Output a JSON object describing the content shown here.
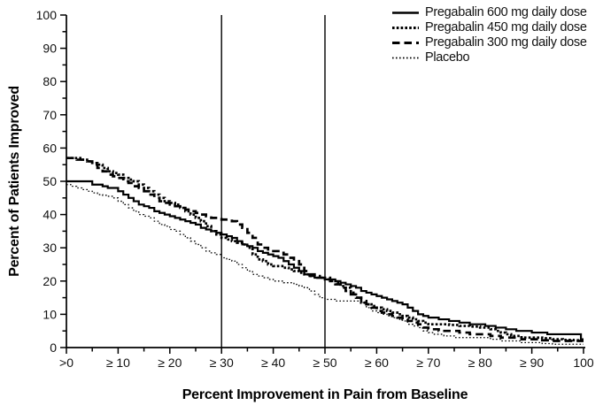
{
  "chart_data": {
    "type": "line",
    "subtype": "step",
    "title": "",
    "xlabel": "Percent Improvement in Pain from Baseline",
    "ylabel": "Percent of Patients Improved",
    "xlim": [
      0,
      100
    ],
    "ylim": [
      0,
      100
    ],
    "x_tick_positions": [
      0,
      10,
      20,
      30,
      40,
      50,
      60,
      70,
      80,
      90,
      100
    ],
    "x_tick_labels": [
      ">0",
      "≥ 10",
      "≥ 20",
      "≥ 30",
      "≥ 40",
      "≥ 50",
      "≥ 60",
      "≥ 70",
      "≥ 80",
      "≥ 90",
      "100"
    ],
    "y_tick_positions": [
      0,
      10,
      20,
      30,
      40,
      50,
      60,
      70,
      80,
      90,
      100
    ],
    "y_tick_labels": [
      "0",
      "10",
      "20",
      "30",
      "40",
      "50",
      "60",
      "70",
      "80",
      "90",
      "100"
    ],
    "minor_tick_step": 5,
    "reference_lines_x": [
      30,
      50
    ],
    "grid": false,
    "legend_position": "top-right",
    "line_color": "#000000",
    "background_color": "#ffffff",
    "series": [
      {
        "name": "Pregabalin 600 mg daily dose",
        "style": "solid",
        "points": [
          [
            0,
            50
          ],
          [
            5,
            49
          ],
          [
            7,
            48.5
          ],
          [
            8,
            48
          ],
          [
            10,
            47
          ],
          [
            11,
            46
          ],
          [
            12,
            45
          ],
          [
            13,
            44
          ],
          [
            14,
            43
          ],
          [
            15,
            42.5
          ],
          [
            16,
            42
          ],
          [
            17,
            41
          ],
          [
            18,
            40.5
          ],
          [
            19,
            40
          ],
          [
            20,
            39.5
          ],
          [
            21,
            39
          ],
          [
            22,
            38.5
          ],
          [
            23,
            38
          ],
          [
            24,
            37.5
          ],
          [
            25,
            37
          ],
          [
            26,
            36
          ],
          [
            27,
            35.5
          ],
          [
            28,
            35
          ],
          [
            29,
            34.5
          ],
          [
            30,
            34
          ],
          [
            31,
            33.5
          ],
          [
            32,
            33
          ],
          [
            33,
            32
          ],
          [
            34,
            31
          ],
          [
            35,
            30.5
          ],
          [
            36,
            30
          ],
          [
            37,
            29
          ],
          [
            38,
            28.5
          ],
          [
            39,
            28
          ],
          [
            40,
            27.5
          ],
          [
            41,
            27
          ],
          [
            42,
            26
          ],
          [
            43,
            25
          ],
          [
            44,
            24
          ],
          [
            45,
            23
          ],
          [
            46,
            22
          ],
          [
            47,
            21.5
          ],
          [
            48,
            21
          ],
          [
            50,
            20.5
          ],
          [
            52,
            20
          ],
          [
            53,
            19.5
          ],
          [
            54,
            19
          ],
          [
            55,
            18.5
          ],
          [
            56,
            18
          ],
          [
            57,
            17
          ],
          [
            58,
            16.5
          ],
          [
            59,
            16
          ],
          [
            60,
            15.5
          ],
          [
            61,
            15
          ],
          [
            62,
            14.5
          ],
          [
            63,
            14
          ],
          [
            64,
            13.5
          ],
          [
            65,
            13
          ],
          [
            66,
            12
          ],
          [
            67,
            11
          ],
          [
            68,
            10
          ],
          [
            69,
            9.5
          ],
          [
            70,
            9
          ],
          [
            72,
            8.5
          ],
          [
            74,
            8
          ],
          [
            76,
            7.5
          ],
          [
            78,
            7
          ],
          [
            81,
            6.5
          ],
          [
            83,
            6
          ],
          [
            85,
            5.5
          ],
          [
            87,
            5
          ],
          [
            90,
            4.5
          ],
          [
            93,
            4
          ],
          [
            99,
            4
          ],
          [
            99.5,
            2.5
          ],
          [
            100,
            2.5
          ]
        ]
      },
      {
        "name": "Pregabalin 450 mg daily dose",
        "style": "dotted-bold",
        "points": [
          [
            0,
            57
          ],
          [
            2,
            57
          ],
          [
            3,
            56.5
          ],
          [
            4,
            56
          ],
          [
            5,
            55.5
          ],
          [
            6,
            55
          ],
          [
            7,
            54
          ],
          [
            8,
            53
          ],
          [
            9,
            52.5
          ],
          [
            10,
            52
          ],
          [
            11,
            51
          ],
          [
            12,
            50.5
          ],
          [
            13,
            50
          ],
          [
            14,
            49
          ],
          [
            15,
            48
          ],
          [
            16,
            47
          ],
          [
            17,
            46
          ],
          [
            18,
            45
          ],
          [
            19,
            44
          ],
          [
            20,
            43.5
          ],
          [
            21,
            43
          ],
          [
            22,
            42
          ],
          [
            23,
            41
          ],
          [
            24,
            40
          ],
          [
            25,
            39
          ],
          [
            26,
            38
          ],
          [
            27,
            36.5
          ],
          [
            28,
            35
          ],
          [
            29,
            34
          ],
          [
            30,
            33
          ],
          [
            31,
            32.5
          ],
          [
            32,
            32
          ],
          [
            33,
            31.5
          ],
          [
            34,
            31
          ],
          [
            35,
            30
          ],
          [
            36,
            28
          ],
          [
            37,
            26.5
          ],
          [
            38,
            26
          ],
          [
            39,
            25
          ],
          [
            40,
            24.5
          ],
          [
            42,
            24
          ],
          [
            43,
            23.5
          ],
          [
            44,
            23
          ],
          [
            45,
            22.5
          ],
          [
            46,
            22
          ],
          [
            47,
            21.5
          ],
          [
            48,
            21
          ],
          [
            50,
            20.5
          ],
          [
            51,
            20
          ],
          [
            52,
            19.5
          ],
          [
            53,
            18.5
          ],
          [
            54,
            18
          ],
          [
            55,
            16.5
          ],
          [
            56,
            15
          ],
          [
            57,
            13.5
          ],
          [
            58,
            13
          ],
          [
            59,
            12.5
          ],
          [
            60,
            12
          ],
          [
            61,
            11.5
          ],
          [
            62,
            11
          ],
          [
            63,
            10.5
          ],
          [
            64,
            10
          ],
          [
            65,
            9.5
          ],
          [
            66,
            9
          ],
          [
            67,
            8.5
          ],
          [
            68,
            8
          ],
          [
            69,
            7.5
          ],
          [
            70,
            7
          ],
          [
            74,
            6.8
          ],
          [
            76,
            6.5
          ],
          [
            78,
            6.3
          ],
          [
            80,
            6
          ],
          [
            82,
            5.5
          ],
          [
            83,
            5
          ],
          [
            84,
            4.5
          ],
          [
            85,
            4
          ],
          [
            86,
            3.5
          ],
          [
            88,
            3
          ],
          [
            90,
            3
          ],
          [
            92,
            2.8
          ],
          [
            94,
            2.5
          ],
          [
            96,
            2.3
          ],
          [
            98,
            2.2
          ],
          [
            100,
            2
          ]
        ]
      },
      {
        "name": "Pregabalin 300 mg daily dose",
        "style": "dashed-bold",
        "points": [
          [
            0,
            57
          ],
          [
            2,
            56.5
          ],
          [
            4,
            56
          ],
          [
            5,
            55
          ],
          [
            6,
            54
          ],
          [
            7,
            53
          ],
          [
            8,
            52
          ],
          [
            9,
            51.5
          ],
          [
            10,
            51
          ],
          [
            11,
            50
          ],
          [
            12,
            49.5
          ],
          [
            13,
            48.5
          ],
          [
            14,
            48
          ],
          [
            15,
            47
          ],
          [
            16,
            46
          ],
          [
            17,
            45
          ],
          [
            18,
            44
          ],
          [
            19,
            43.5
          ],
          [
            20,
            43
          ],
          [
            21,
            42.5
          ],
          [
            22,
            42
          ],
          [
            23,
            41.5
          ],
          [
            24,
            41
          ],
          [
            25,
            40.5
          ],
          [
            26,
            40
          ],
          [
            27,
            39.5
          ],
          [
            28,
            39
          ],
          [
            30,
            38.5
          ],
          [
            32,
            38
          ],
          [
            33,
            37
          ],
          [
            34,
            36
          ],
          [
            35,
            34.5
          ],
          [
            36,
            33
          ],
          [
            37,
            31
          ],
          [
            38,
            30
          ],
          [
            39,
            29.5
          ],
          [
            40,
            29
          ],
          [
            41,
            28.5
          ],
          [
            42,
            28
          ],
          [
            43,
            27
          ],
          [
            44,
            26
          ],
          [
            45,
            25
          ],
          [
            46,
            23
          ],
          [
            47,
            22
          ],
          [
            48,
            21.5
          ],
          [
            49,
            21
          ],
          [
            50,
            21
          ],
          [
            51,
            20
          ],
          [
            52,
            19
          ],
          [
            53,
            18
          ],
          [
            54,
            17
          ],
          [
            55,
            16
          ],
          [
            56,
            15
          ],
          [
            57,
            14
          ],
          [
            58,
            13
          ],
          [
            59,
            12
          ],
          [
            60,
            11
          ],
          [
            61,
            10.5
          ],
          [
            62,
            10
          ],
          [
            63,
            9.5
          ],
          [
            64,
            9
          ],
          [
            65,
            8.5
          ],
          [
            66,
            8
          ],
          [
            67,
            7.5
          ],
          [
            68,
            7
          ],
          [
            69,
            6
          ],
          [
            70,
            5.5
          ],
          [
            72,
            5
          ],
          [
            75,
            5
          ],
          [
            76,
            4.5
          ],
          [
            78,
            4
          ],
          [
            80,
            4
          ],
          [
            82,
            3.5
          ],
          [
            84,
            3
          ],
          [
            86,
            3
          ],
          [
            88,
            2.5
          ],
          [
            90,
            2.5
          ],
          [
            92,
            2.2
          ],
          [
            94,
            2
          ],
          [
            98,
            2
          ],
          [
            100,
            2
          ]
        ]
      },
      {
        "name": "Placebo",
        "style": "dotted-thin",
        "points": [
          [
            0,
            49
          ],
          [
            1,
            48.5
          ],
          [
            2,
            48
          ],
          [
            3,
            47.5
          ],
          [
            4,
            47
          ],
          [
            5,
            46.5
          ],
          [
            6,
            46
          ],
          [
            7,
            45.8
          ],
          [
            8,
            45.5
          ],
          [
            9,
            45
          ],
          [
            10,
            44
          ],
          [
            11,
            43
          ],
          [
            12,
            42
          ],
          [
            13,
            41
          ],
          [
            14,
            40
          ],
          [
            15,
            39.5
          ],
          [
            16,
            39
          ],
          [
            17,
            38
          ],
          [
            18,
            37
          ],
          [
            19,
            36.5
          ],
          [
            20,
            35.5
          ],
          [
            21,
            35
          ],
          [
            22,
            34
          ],
          [
            23,
            33
          ],
          [
            24,
            32
          ],
          [
            25,
            31
          ],
          [
            26,
            30
          ],
          [
            27,
            29
          ],
          [
            28,
            28.5
          ],
          [
            29,
            28
          ],
          [
            30,
            27
          ],
          [
            31,
            26.5
          ],
          [
            32,
            26
          ],
          [
            33,
            25
          ],
          [
            34,
            24
          ],
          [
            35,
            23
          ],
          [
            36,
            22
          ],
          [
            37,
            21.5
          ],
          [
            38,
            21
          ],
          [
            39,
            20.5
          ],
          [
            40,
            20
          ],
          [
            42,
            19.5
          ],
          [
            44,
            19
          ],
          [
            45,
            18.5
          ],
          [
            46,
            18
          ],
          [
            47,
            17
          ],
          [
            48,
            16
          ],
          [
            49,
            15
          ],
          [
            50,
            14.5
          ],
          [
            52,
            14
          ],
          [
            55,
            14
          ],
          [
            57,
            13.5
          ],
          [
            58,
            12
          ],
          [
            59,
            11
          ],
          [
            60,
            10.5
          ],
          [
            61,
            10
          ],
          [
            62,
            9.5
          ],
          [
            63,
            9
          ],
          [
            64,
            8.5
          ],
          [
            65,
            8
          ],
          [
            66,
            7
          ],
          [
            67,
            6.5
          ],
          [
            68,
            6
          ],
          [
            69,
            5
          ],
          [
            70,
            4.5
          ],
          [
            71,
            4
          ],
          [
            73,
            3.5
          ],
          [
            75,
            3
          ],
          [
            80,
            3
          ],
          [
            82,
            2.5
          ],
          [
            84,
            2
          ],
          [
            86,
            2
          ],
          [
            88,
            1.5
          ],
          [
            90,
            1.5
          ],
          [
            92,
            1.2
          ],
          [
            94,
            1
          ],
          [
            98,
            1
          ],
          [
            100,
            1
          ]
        ]
      }
    ]
  }
}
